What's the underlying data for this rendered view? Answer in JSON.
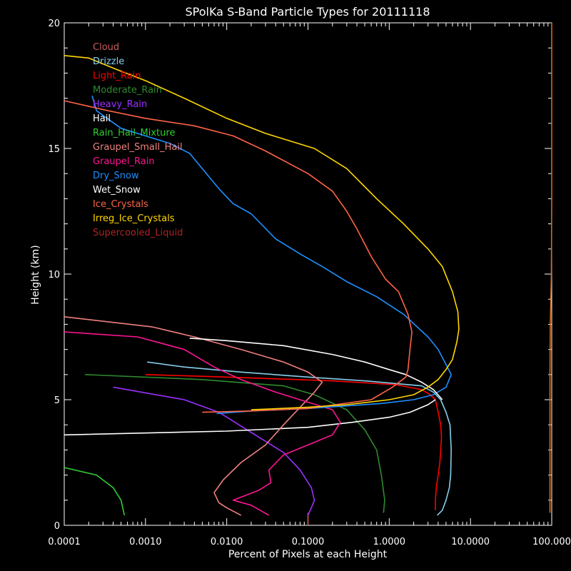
{
  "chart_data": {
    "type": "line",
    "title": "SPolKa S-Band Particle Types for 20111118",
    "xlabel": "Percent of Pixels at each Height",
    "ylabel": "Height (km)",
    "x_scale": "log",
    "xlim": [
      0.0001,
      100.0
    ],
    "ylim": [
      0,
      20
    ],
    "x_ticks": [
      "0.0001",
      "0.0010",
      "0.0100",
      "0.1000",
      "1.0000",
      "10.0000",
      "100.000"
    ],
    "y_ticks": [
      "0",
      "5",
      "10",
      "15",
      "20"
    ],
    "grid": false,
    "legend_position": "top-left",
    "series": [
      {
        "name": "Cloud",
        "color": "#cd5c5c",
        "points": [
          [
            0.1,
            0
          ],
          [
            0.1,
            0.5
          ]
        ]
      },
      {
        "name": "Drizzle",
        "color": "#87ceeb",
        "points": [
          [
            0.00105,
            6.5
          ],
          [
            0.003,
            6.3
          ],
          [
            0.015,
            6.1
          ],
          [
            0.1,
            5.9
          ],
          [
            0.5,
            5.75
          ],
          [
            2.5,
            5.55
          ],
          [
            3.5,
            5.3
          ],
          [
            4.3,
            5.0
          ],
          [
            5.0,
            4.5
          ],
          [
            5.6,
            4.0
          ],
          [
            5.8,
            3.0
          ],
          [
            5.7,
            2.0
          ],
          [
            5.5,
            1.5
          ],
          [
            5.0,
            1.0
          ],
          [
            4.5,
            0.6
          ],
          [
            3.9,
            0.4
          ]
        ]
      },
      {
        "name": "Light_Rain",
        "color": "#ff0000",
        "points": [
          [
            0.001,
            6.0
          ],
          [
            0.01,
            5.9
          ],
          [
            0.2,
            5.75
          ],
          [
            1.2,
            5.6
          ],
          [
            2.5,
            5.4
          ],
          [
            3.2,
            5.2
          ],
          [
            3.7,
            5.0
          ],
          [
            4.0,
            4.5
          ],
          [
            4.3,
            4.0
          ],
          [
            4.4,
            3.5
          ],
          [
            4.2,
            2.5
          ],
          [
            4.0,
            2.0
          ],
          [
            3.8,
            1.5
          ],
          [
            3.7,
            1.0
          ],
          [
            3.7,
            0.6
          ]
        ]
      },
      {
        "name": "Moderate_Rain",
        "color": "#2e8b2e",
        "points": [
          [
            0.00018,
            6.0
          ],
          [
            0.005,
            5.8
          ],
          [
            0.05,
            5.55
          ],
          [
            0.12,
            5.2
          ],
          [
            0.3,
            4.6
          ],
          [
            0.5,
            3.8
          ],
          [
            0.7,
            3.0
          ],
          [
            0.8,
            2.0
          ],
          [
            0.88,
            1.0
          ],
          [
            0.85,
            0.5
          ]
        ]
      },
      {
        "name": "Heavy_Rain",
        "color": "#9b30ff",
        "points": [
          [
            0.0004,
            5.5
          ],
          [
            0.003,
            5.0
          ],
          [
            0.008,
            4.5
          ],
          [
            0.02,
            3.7
          ],
          [
            0.05,
            2.9
          ],
          [
            0.08,
            2.2
          ],
          [
            0.11,
            1.5
          ],
          [
            0.12,
            1.0
          ],
          [
            0.11,
            0.7
          ],
          [
            0.1,
            0.4
          ]
        ]
      },
      {
        "name": "Hail",
        "color": "#ffffff",
        "points": [
          [
            0.0001,
            3.6
          ],
          [
            0.01,
            3.75
          ],
          [
            0.1,
            3.9
          ],
          [
            0.35,
            4.1
          ],
          [
            1.0,
            4.3
          ],
          [
            1.8,
            4.5
          ],
          [
            3.0,
            4.8
          ],
          [
            3.7,
            5.0
          ]
        ]
      },
      {
        "name": "Rain_Hail_Mixture",
        "color": "#32cd32",
        "points": [
          [
            0.0001,
            2.3
          ],
          [
            0.00025,
            2.0
          ],
          [
            0.0004,
            1.5
          ],
          [
            0.0005,
            1.0
          ],
          [
            0.00055,
            0.4
          ]
        ]
      },
      {
        "name": "Graupel_Small_Hail",
        "color": "#f08080",
        "points": [
          [
            0.0001,
            8.3
          ],
          [
            0.0012,
            7.9
          ],
          [
            0.004,
            7.5
          ],
          [
            0.015,
            7.0
          ],
          [
            0.05,
            6.5
          ],
          [
            0.1,
            6.1
          ],
          [
            0.15,
            5.7
          ],
          [
            0.12,
            5.3
          ],
          [
            0.08,
            4.7
          ],
          [
            0.05,
            4.0
          ],
          [
            0.03,
            3.2
          ],
          [
            0.015,
            2.5
          ],
          [
            0.009,
            1.8
          ],
          [
            0.007,
            1.3
          ],
          [
            0.008,
            0.9
          ],
          [
            0.01,
            0.7
          ],
          [
            0.015,
            0.4
          ]
        ]
      },
      {
        "name": "Graupel_Rain",
        "color": "#ff1493",
        "points": [
          [
            0.0001,
            7.7
          ],
          [
            0.0008,
            7.5
          ],
          [
            0.003,
            7.0
          ],
          [
            0.007,
            6.3
          ],
          [
            0.015,
            5.8
          ],
          [
            0.04,
            5.3
          ],
          [
            0.1,
            4.9
          ],
          [
            0.2,
            4.6
          ],
          [
            0.25,
            4.1
          ],
          [
            0.2,
            3.6
          ],
          [
            0.1,
            3.2
          ],
          [
            0.05,
            2.8
          ],
          [
            0.033,
            2.2
          ],
          [
            0.035,
            1.7
          ],
          [
            0.025,
            1.4
          ],
          [
            0.012,
            1.0
          ],
          [
            0.02,
            0.8
          ],
          [
            0.033,
            0.4
          ]
        ]
      },
      {
        "name": "Dry_Snow",
        "color": "#1e90ff",
        "points": [
          [
            0.00022,
            17.1
          ],
          [
            0.00025,
            16.5
          ],
          [
            0.0005,
            15.8
          ],
          [
            0.001,
            15.5
          ],
          [
            0.002,
            15.2
          ],
          [
            0.0035,
            14.8
          ],
          [
            0.005,
            14.2
          ],
          [
            0.008,
            13.4
          ],
          [
            0.012,
            12.8
          ],
          [
            0.02,
            12.4
          ],
          [
            0.04,
            11.4
          ],
          [
            0.08,
            10.8
          ],
          [
            0.15,
            10.3
          ],
          [
            0.3,
            9.7
          ],
          [
            0.7,
            9.1
          ],
          [
            1.5,
            8.4
          ],
          [
            3.0,
            7.5
          ],
          [
            4.0,
            7.0
          ],
          [
            5.0,
            6.4
          ],
          [
            5.8,
            6.0
          ],
          [
            5.0,
            5.5
          ],
          [
            3.5,
            5.2
          ],
          [
            2.0,
            5.0
          ],
          [
            0.8,
            4.85
          ],
          [
            0.1,
            4.65
          ],
          [
            0.02,
            4.55
          ],
          [
            0.0075,
            4.45
          ]
        ]
      },
      {
        "name": "Wet_Snow",
        "color": "#ffffff",
        "points": [
          [
            0.0035,
            7.45
          ],
          [
            0.01,
            7.35
          ],
          [
            0.05,
            7.15
          ],
          [
            0.2,
            6.8
          ],
          [
            0.5,
            6.5
          ],
          [
            1.0,
            6.2
          ],
          [
            1.6,
            6.0
          ],
          [
            2.5,
            5.7
          ],
          [
            3.5,
            5.4
          ],
          [
            4.5,
            5.0
          ]
        ]
      },
      {
        "name": "Ice_Crystals",
        "color": "#ff6347",
        "points": [
          [
            0.0001,
            16.9
          ],
          [
            0.00035,
            16.5
          ],
          [
            0.001,
            16.2
          ],
          [
            0.004,
            15.9
          ],
          [
            0.012,
            15.5
          ],
          [
            0.03,
            14.9
          ],
          [
            0.1,
            14.0
          ],
          [
            0.2,
            13.3
          ],
          [
            0.3,
            12.5
          ],
          [
            0.4,
            11.8
          ],
          [
            0.6,
            10.7
          ],
          [
            0.9,
            9.8
          ],
          [
            1.3,
            9.3
          ],
          [
            1.7,
            8.4
          ],
          [
            1.9,
            7.7
          ],
          [
            1.8,
            7.0
          ],
          [
            1.7,
            6.2
          ],
          [
            1.6,
            5.9
          ],
          [
            1.1,
            5.5
          ],
          [
            0.6,
            5.0
          ],
          [
            0.1,
            4.65
          ],
          [
            0.02,
            4.55
          ],
          [
            0.005,
            4.5
          ]
        ]
      },
      {
        "name": "Irreg_Ice_Crystals",
        "color": "#ffd700",
        "points": [
          [
            0.0001,
            18.7
          ],
          [
            0.0002,
            18.6
          ],
          [
            0.0004,
            18.2
          ],
          [
            0.001,
            17.7
          ],
          [
            0.003,
            17.0
          ],
          [
            0.01,
            16.2
          ],
          [
            0.03,
            15.6
          ],
          [
            0.12,
            15.0
          ],
          [
            0.3,
            14.2
          ],
          [
            0.7,
            13.0
          ],
          [
            1.5,
            12.0
          ],
          [
            3.0,
            11.0
          ],
          [
            4.5,
            10.3
          ],
          [
            6.0,
            9.3
          ],
          [
            7.0,
            8.5
          ],
          [
            7.2,
            7.8
          ],
          [
            6.8,
            7.3
          ],
          [
            6.0,
            6.6
          ],
          [
            5.0,
            6.2
          ],
          [
            4.0,
            5.8
          ],
          [
            3.0,
            5.5
          ],
          [
            2.0,
            5.2
          ],
          [
            1.0,
            5.0
          ],
          [
            0.3,
            4.8
          ],
          [
            0.1,
            4.7
          ],
          [
            0.02,
            4.6
          ]
        ]
      },
      {
        "name": "Supercooled_Liquid",
        "color": "#b22222",
        "points": []
      },
      {
        "name": "",
        "color": "#d2691e",
        "points": [
          [
            100.0,
            20
          ],
          [
            100.0,
            13
          ],
          [
            99,
            10
          ],
          [
            96,
            8
          ],
          [
            95,
            6
          ],
          [
            95,
            0.5
          ]
        ]
      }
    ]
  }
}
